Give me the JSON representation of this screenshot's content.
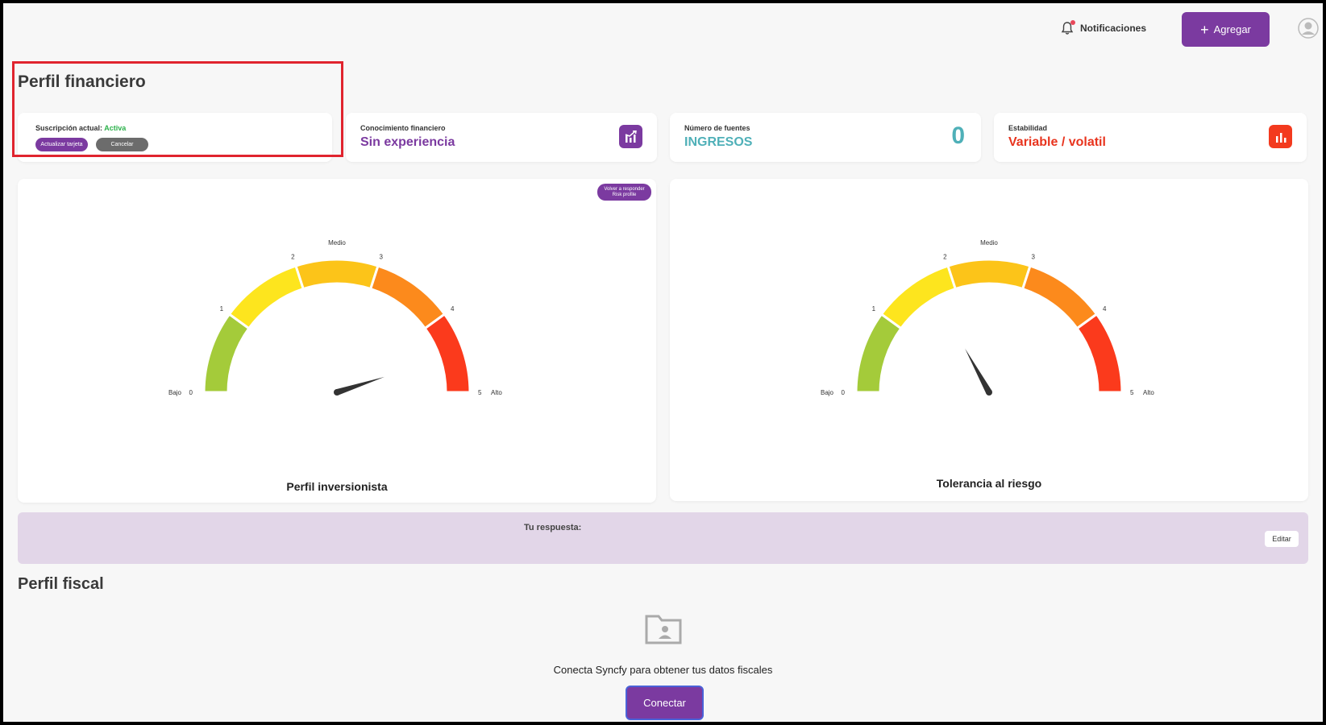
{
  "header": {
    "notifications_label": "Notificaciones",
    "add_label": "Agregar"
  },
  "financial_profile": {
    "title": "Perfil financiero",
    "subscription": {
      "label": "Suscripción actual:",
      "status": "Activa",
      "update_card_label": "Actualizar tarjeta",
      "cancel_label": "Cancelar"
    },
    "cards": [
      {
        "label": "Conocimiento financiero",
        "value": "Sin experiencia",
        "color": "#7b3aa0",
        "icon": "growth-chart-icon"
      },
      {
        "label": "Número de fuentes",
        "value": "INGRESOS",
        "count": "0",
        "color": "#4fb0b8"
      },
      {
        "label": "Estabilidad",
        "value": "Variable / volatil",
        "color": "#e8341e",
        "icon": "bar-chart-icon"
      }
    ]
  },
  "gauges": [
    {
      "title": "Perfil inversionista",
      "retake_label_1": "Volver a responder",
      "retake_label_2": "Risk profile",
      "value": 4.5,
      "min": 0,
      "max": 5,
      "low_label": "Bajo",
      "mid_label": "Medio",
      "high_label": "Alto",
      "ticks": [
        "0",
        "1",
        "2",
        "3",
        "4",
        "5"
      ]
    },
    {
      "title": "Tolerancia al riesgo",
      "value": 1.7,
      "min": 0,
      "max": 5,
      "low_label": "Bajo",
      "mid_label": "Medio",
      "high_label": "Alto",
      "ticks": [
        "0",
        "1",
        "2",
        "3",
        "4",
        "5"
      ]
    }
  ],
  "gauge_colors": [
    "#a4cb3a",
    "#fde51e",
    "#fcc419",
    "#fc8a1c",
    "#fb3a1c"
  ],
  "answer": {
    "label": "Tu respuesta:",
    "edit_label": "Editar"
  },
  "fiscal_profile": {
    "title": "Perfil fiscal",
    "message": "Conecta Syncfy para obtener tus datos fiscales",
    "connect_label": "Conectar"
  }
}
